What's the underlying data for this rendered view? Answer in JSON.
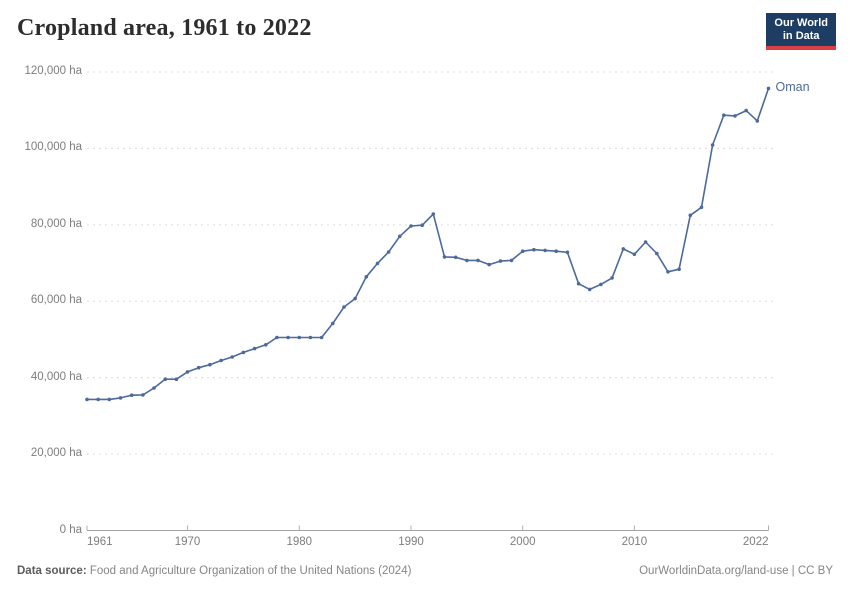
{
  "header": {
    "title": "Cropland area, 1961 to 2022"
  },
  "logo": {
    "line1": "Our World",
    "line2": "in Data"
  },
  "chart_data": {
    "type": "line",
    "title": "Cropland area, 1961 to 2022",
    "xlabel": "",
    "ylabel": "Cropland area (ha)",
    "unit": "ha",
    "grid": "dashed horizontal gridlines",
    "legend_position": "label at end of line",
    "xlim": [
      1961,
      2022
    ],
    "ylim": [
      0,
      120000
    ],
    "x": [
      1961,
      1962,
      1963,
      1964,
      1965,
      1966,
      1967,
      1968,
      1969,
      1970,
      1971,
      1972,
      1973,
      1974,
      1975,
      1976,
      1977,
      1978,
      1979,
      1980,
      1981,
      1982,
      1983,
      1984,
      1985,
      1986,
      1987,
      1988,
      1989,
      1990,
      1991,
      1992,
      1993,
      1994,
      1995,
      1996,
      1997,
      1998,
      1999,
      2000,
      2001,
      2002,
      2003,
      2004,
      2005,
      2006,
      2007,
      2008,
      2009,
      2010,
      2011,
      2012,
      2013,
      2014,
      2015,
      2016,
      2017,
      2018,
      2019,
      2020,
      2021,
      2022
    ],
    "series": [
      {
        "name": "Oman",
        "color": "#4C6A9C",
        "values": [
          34300,
          34300,
          34300,
          34700,
          35400,
          35500,
          37300,
          39600,
          39600,
          41500,
          42600,
          43400,
          44500,
          45400,
          46600,
          47600,
          48600,
          50500,
          50500,
          50500,
          50500,
          50500,
          54200,
          58500,
          60700,
          66400,
          69900,
          72900,
          77000,
          79700,
          79900,
          82800,
          71600,
          71500,
          70700,
          70700,
          69600,
          70500,
          70700,
          73100,
          73500,
          73300,
          73100,
          72800,
          64600,
          63100,
          64400,
          66100,
          73700,
          72300,
          75500,
          72500,
          67700,
          68400,
          82500,
          84600,
          100900,
          108700,
          108500,
          109900,
          107200,
          115700
        ]
      }
    ],
    "y_ticks": [
      {
        "value": 0,
        "label": "0 ha"
      },
      {
        "value": 20000,
        "label": "20,000 ha"
      },
      {
        "value": 40000,
        "label": "40,000 ha"
      },
      {
        "value": 60000,
        "label": "60,000 ha"
      },
      {
        "value": 80000,
        "label": "80,000 ha"
      },
      {
        "value": 100000,
        "label": "100,000 ha"
      },
      {
        "value": 120000,
        "label": "120,000 ha"
      }
    ],
    "x_ticks": [
      {
        "value": 1961,
        "label": "1961"
      },
      {
        "value": 1970,
        "label": "1970"
      },
      {
        "value": 1980,
        "label": "1980"
      },
      {
        "value": 1990,
        "label": "1990"
      },
      {
        "value": 2000,
        "label": "2000"
      },
      {
        "value": 2010,
        "label": "2010"
      },
      {
        "value": 2022,
        "label": "2022"
      }
    ]
  },
  "footer": {
    "source_label": "Data source:",
    "source_text": " Food and Agriculture Organization of the United Nations (2024)",
    "link_text": "OurWorldinData.org/land-use | CC BY"
  },
  "colors": {
    "line": "#4C6A9C",
    "grid": "#dcdcdc",
    "axis": "#a1a1a1",
    "tick": "#b0b0b0",
    "logo_bg": "#1d3d63",
    "logo_stripe": "#dc3e46"
  }
}
